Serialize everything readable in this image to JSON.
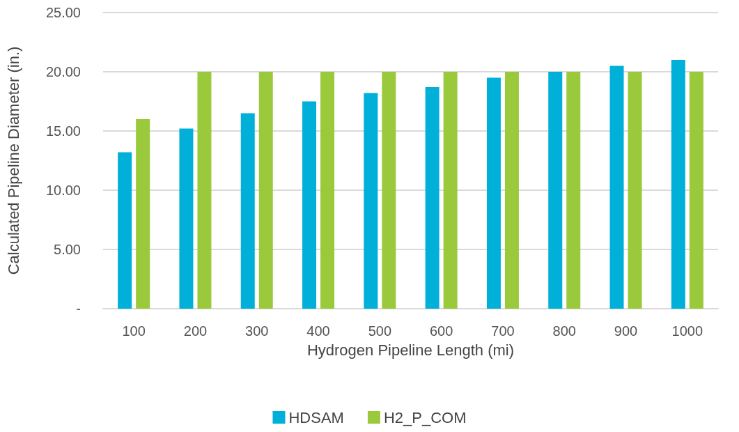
{
  "chart_data": {
    "type": "bar",
    "xlabel": "Hydrogen Pipeline Length (mi)",
    "ylabel": "Calculated Pipeline Diameter (in.)",
    "categories": [
      "100",
      "200",
      "300",
      "400",
      "500",
      "600",
      "700",
      "800",
      "900",
      "1000"
    ],
    "series": [
      {
        "name": "HDSAM",
        "color": "#00b0d8",
        "values": [
          13.2,
          15.2,
          16.5,
          17.5,
          18.2,
          18.7,
          19.5,
          20,
          20.5,
          21
        ]
      },
      {
        "name": "H2_P_COM",
        "color": "#9bc93c",
        "values": [
          16,
          20,
          20,
          20,
          20,
          20,
          20,
          20,
          20,
          20
        ]
      }
    ],
    "ylim": [
      0,
      25
    ],
    "yticks": [
      {
        "value": 0,
        "label": "-"
      },
      {
        "value": 5,
        "label": "5.00"
      },
      {
        "value": 10,
        "label": "10.00"
      },
      {
        "value": 15,
        "label": "15.00"
      },
      {
        "value": 20,
        "label": "20.00"
      },
      {
        "value": 25,
        "label": "25.00"
      }
    ],
    "grid": "y",
    "legend": "bottom"
  }
}
